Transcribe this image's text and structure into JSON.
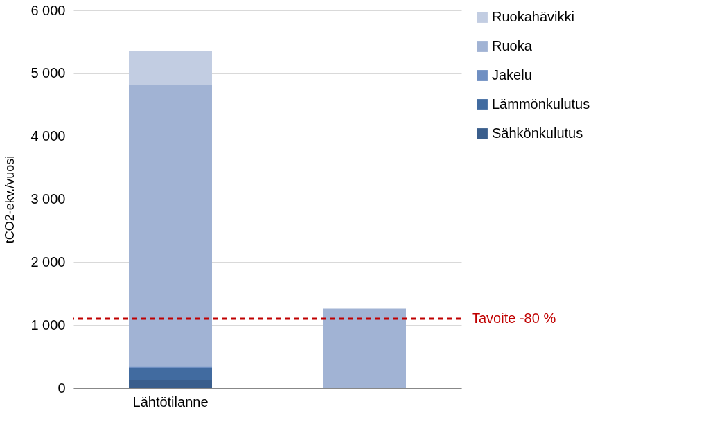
{
  "chart_data": {
    "type": "bar",
    "stacked": true,
    "ylabel": "tCO2-ekv./vuosi",
    "categories": [
      "Lähtötilanne",
      null
    ],
    "series": [
      {
        "name": "Sähkönkulutus",
        "color": "#3a5e8c",
        "values": [
          130,
          0
        ]
      },
      {
        "name": "Lämmönkulutus",
        "color": "#416ba0",
        "values": [
          190,
          0
        ]
      },
      {
        "name": "Jakelu",
        "color": "#6f8fc2",
        "values": [
          30,
          0
        ]
      },
      {
        "name": "Ruoka",
        "color": "#a1b3d4",
        "values": [
          4470,
          1260
        ]
      },
      {
        "name": "Ruokahävikki",
        "color": "#c2cde2",
        "values": [
          530,
          0
        ]
      }
    ],
    "ylim": [
      0,
      6000
    ],
    "yticks": [
      {
        "value": 0,
        "label": "0"
      },
      {
        "value": 1000,
        "label": "1 000"
      },
      {
        "value": 2000,
        "label": "2 000"
      },
      {
        "value": 3000,
        "label": "3 000"
      },
      {
        "value": 4000,
        "label": "4 000"
      },
      {
        "value": 5000,
        "label": "5 000"
      },
      {
        "value": 6000,
        "label": "6 000"
      }
    ],
    "ref_lines": [
      {
        "axis": "y",
        "value": 1100,
        "label": "Tavoite -80 %",
        "color": "#c00000",
        "line_style": "dashed"
      }
    ],
    "grid": "y",
    "legend": "right"
  }
}
